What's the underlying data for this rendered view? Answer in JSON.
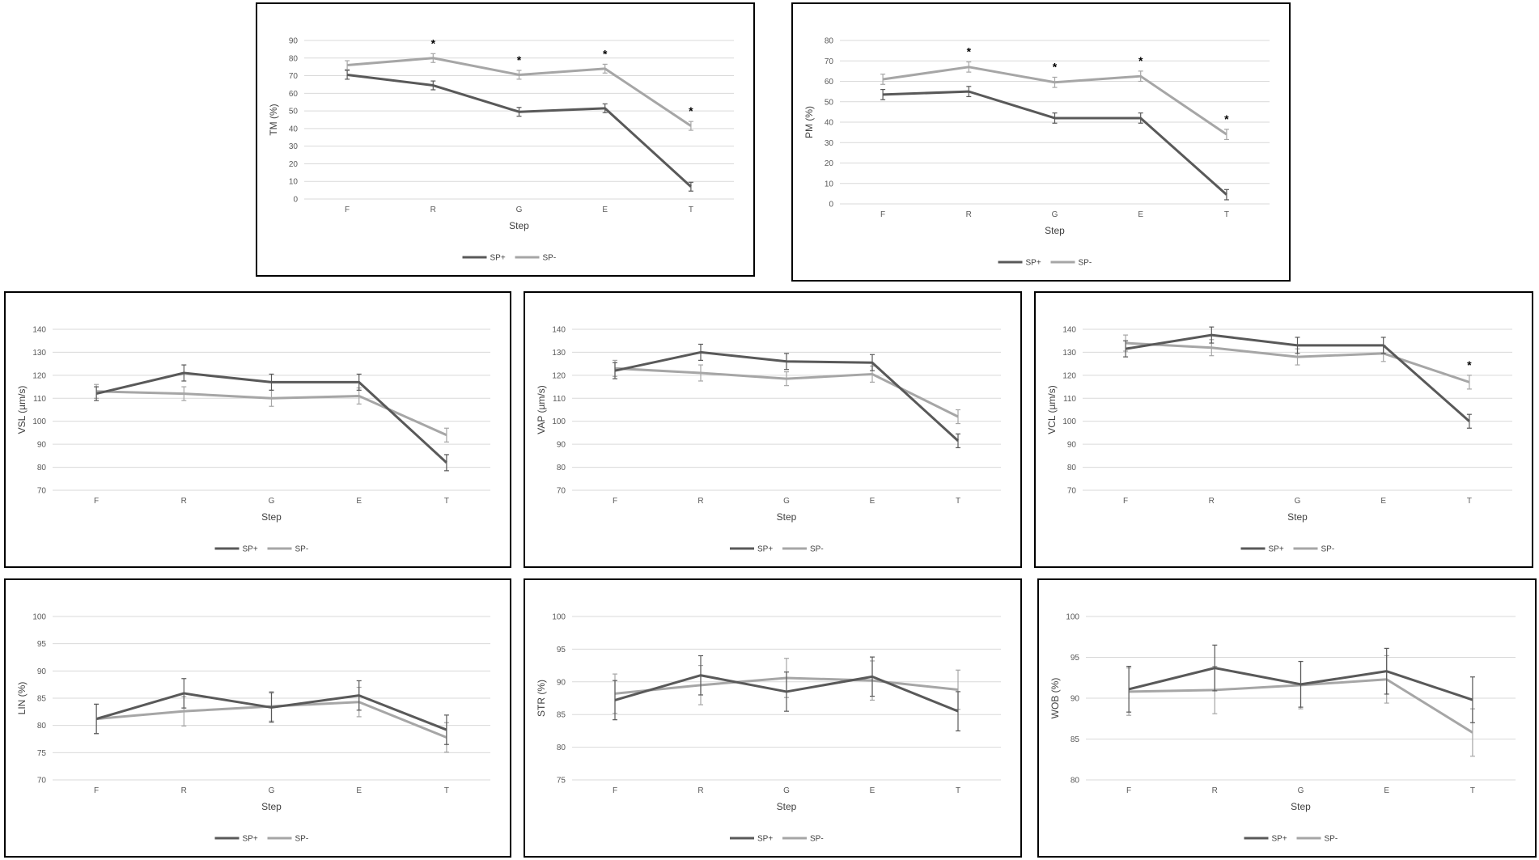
{
  "legend": {
    "sp_plus": "SP+",
    "sp_minus": "SP-"
  },
  "colors": {
    "sp_plus": "#595959",
    "sp_minus": "#a6a6a6",
    "grid": "#d9d9d9"
  },
  "chart_data": [
    {
      "type": "line",
      "xlabel": "Step",
      "ylabel": "TM (%)",
      "categories": [
        "F",
        "R",
        "G",
        "E",
        "T"
      ],
      "ylim": [
        0,
        90
      ],
      "yticks": [
        0,
        10,
        20,
        30,
        40,
        50,
        60,
        70,
        80,
        90
      ],
      "significance": [
        "",
        "*",
        "*",
        "*",
        "*"
      ],
      "grid": true,
      "legend_position": "bottom",
      "series": [
        {
          "name": "SP+",
          "values": [
            70.5,
            64.5,
            49.5,
            51.5,
            7
          ],
          "errors": [
            2.5,
            2.5,
            2.5,
            2.5,
            2.5
          ]
        },
        {
          "name": "SP-",
          "values": [
            76,
            80,
            70.5,
            74,
            41.5
          ],
          "errors": [
            2.5,
            2.5,
            2.5,
            2.5,
            2.5
          ]
        }
      ]
    },
    {
      "type": "line",
      "xlabel": "Step",
      "ylabel": "PM (%)",
      "categories": [
        "F",
        "R",
        "G",
        "E",
        "T"
      ],
      "ylim": [
        0,
        80
      ],
      "yticks": [
        0,
        10,
        20,
        30,
        40,
        50,
        60,
        70,
        80
      ],
      "significance": [
        "",
        "*",
        "*",
        "*",
        "*"
      ],
      "grid": true,
      "legend_position": "bottom",
      "series": [
        {
          "name": "SP+",
          "values": [
            53.5,
            55,
            42,
            42,
            4.5
          ],
          "errors": [
            2.5,
            2.5,
            2.5,
            2.5,
            2.5
          ]
        },
        {
          "name": "SP-",
          "values": [
            61,
            67,
            59.5,
            62.5,
            34
          ],
          "errors": [
            2.5,
            2.5,
            2.5,
            2.5,
            2.5
          ]
        }
      ]
    },
    {
      "type": "line",
      "xlabel": "Step",
      "ylabel": "VSL (µm/s)",
      "categories": [
        "F",
        "R",
        "G",
        "E",
        "T"
      ],
      "ylim": [
        70,
        140
      ],
      "yticks": [
        70,
        80,
        90,
        100,
        110,
        120,
        130,
        140
      ],
      "significance": [
        "",
        "",
        "",
        "",
        ""
      ],
      "grid": true,
      "legend_position": "bottom",
      "series": [
        {
          "name": "SP+",
          "values": [
            112,
            121,
            117,
            117,
            82
          ],
          "errors": [
            3,
            3.5,
            3.5,
            3.5,
            3.5
          ]
        },
        {
          "name": "SP-",
          "values": [
            113,
            112,
            110,
            111,
            94
          ],
          "errors": [
            3,
            3,
            3.5,
            3.5,
            3
          ]
        }
      ]
    },
    {
      "type": "line",
      "xlabel": "Step",
      "ylabel": "VAP (µm/s)",
      "categories": [
        "F",
        "R",
        "G",
        "E",
        "T"
      ],
      "ylim": [
        70,
        140
      ],
      "yticks": [
        70,
        80,
        90,
        100,
        110,
        120,
        130,
        140
      ],
      "significance": [
        "",
        "",
        "",
        "",
        ""
      ],
      "grid": true,
      "legend_position": "bottom",
      "series": [
        {
          "name": "SP+",
          "values": [
            122,
            130,
            126,
            125.5,
            91.5
          ],
          "errors": [
            3.5,
            3.5,
            3.5,
            3.5,
            3
          ]
        },
        {
          "name": "SP-",
          "values": [
            123,
            121,
            118.5,
            120.5,
            102
          ],
          "errors": [
            3.5,
            3.5,
            3,
            3.5,
            3
          ]
        }
      ]
    },
    {
      "type": "line",
      "xlabel": "Step",
      "ylabel": "VCL (µm/s)",
      "categories": [
        "F",
        "R",
        "G",
        "E",
        "T"
      ],
      "ylim": [
        70,
        140
      ],
      "yticks": [
        70,
        80,
        90,
        100,
        110,
        120,
        130,
        140
      ],
      "significance": [
        "",
        "",
        "",
        "",
        "*"
      ],
      "grid": true,
      "legend_position": "bottom",
      "series": [
        {
          "name": "SP+",
          "values": [
            131.5,
            137.5,
            133,
            133,
            100
          ],
          "errors": [
            3.5,
            3.5,
            3.5,
            3.5,
            3
          ]
        },
        {
          "name": "SP-",
          "values": [
            134,
            132,
            128,
            129.5,
            117
          ],
          "errors": [
            3.5,
            3.5,
            3.5,
            3.5,
            3
          ]
        }
      ]
    },
    {
      "type": "line",
      "xlabel": "Step",
      "ylabel": "LIN (%)",
      "categories": [
        "F",
        "R",
        "G",
        "E",
        "T"
      ],
      "ylim": [
        70,
        100
      ],
      "yticks": [
        70,
        75,
        80,
        85,
        90,
        95,
        100
      ],
      "significance": [
        "",
        "",
        "",
        "",
        ""
      ],
      "grid": true,
      "legend_position": "bottom",
      "series": [
        {
          "name": "SP+",
          "values": [
            81.2,
            85.9,
            83.3,
            85.5,
            79.2
          ],
          "errors": [
            2.7,
            2.7,
            2.7,
            2.7,
            2.7
          ]
        },
        {
          "name": "SP-",
          "values": [
            81.2,
            82.6,
            83.5,
            84.3,
            77.8
          ],
          "errors": [
            2.7,
            2.7,
            2.7,
            2.7,
            2.7
          ]
        }
      ]
    },
    {
      "type": "line",
      "xlabel": "Step",
      "ylabel": "STR (%)",
      "categories": [
        "F",
        "R",
        "G",
        "E",
        "T"
      ],
      "ylim": [
        75,
        100
      ],
      "yticks": [
        75,
        80,
        85,
        90,
        95,
        100
      ],
      "significance": [
        "",
        "",
        "",
        "",
        ""
      ],
      "grid": true,
      "legend_position": "bottom",
      "series": [
        {
          "name": "SP+",
          "values": [
            87.2,
            91,
            88.5,
            90.8,
            85.5
          ],
          "errors": [
            3,
            3,
            3,
            3,
            3
          ]
        },
        {
          "name": "SP-",
          "values": [
            88.2,
            89.5,
            90.6,
            90.2,
            88.8
          ],
          "errors": [
            3,
            3,
            3,
            3,
            3
          ]
        }
      ]
    },
    {
      "type": "line",
      "xlabel": "Step",
      "ylabel": "WOB (%)",
      "categories": [
        "F",
        "R",
        "G",
        "E",
        "T"
      ],
      "ylim": [
        80,
        100
      ],
      "yticks": [
        80,
        85,
        90,
        95,
        100
      ],
      "significance": [
        "",
        "",
        "",
        "",
        ""
      ],
      "grid": true,
      "legend_position": "bottom",
      "series": [
        {
          "name": "SP+",
          "values": [
            91.1,
            93.7,
            91.7,
            93.3,
            89.8
          ],
          "errors": [
            2.8,
            2.8,
            2.8,
            2.8,
            2.8
          ]
        },
        {
          "name": "SP-",
          "values": [
            90.8,
            91,
            91.6,
            92.3,
            85.8
          ],
          "errors": [
            2.9,
            2.9,
            2.9,
            2.9,
            2.9
          ]
        }
      ]
    }
  ]
}
